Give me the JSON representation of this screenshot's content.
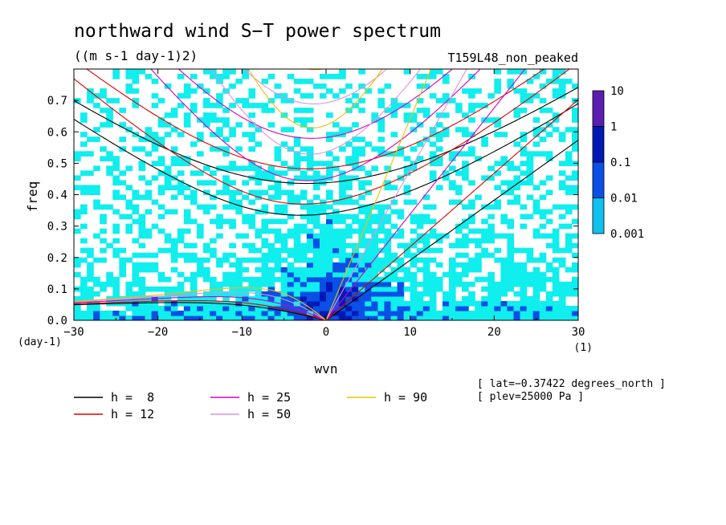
{
  "chart_data": {
    "type": "heatmap",
    "title": "northward wind S−T power spectrum",
    "units": "((m s-1 day-1)2)",
    "run_label": "T159L48_non_peaked",
    "xlabel": "wvn",
    "ylabel": "freq",
    "x_unit_label": "(1)",
    "y_unit_label": "(day-1)",
    "xlim": [
      -30,
      30
    ],
    "ylim": [
      0,
      0.8
    ],
    "x_ticks": [
      "−30",
      "−20",
      "−10",
      "0",
      "10",
      "20",
      "30"
    ],
    "y_ticks": [
      "0.0",
      "0.1",
      "0.2",
      "0.3",
      "0.4",
      "0.5",
      "0.6",
      "0.7"
    ],
    "colorbar": {
      "levels": [
        "10",
        "1",
        "0.1",
        "0.01",
        "0.001"
      ],
      "colors": [
        "#5a1fb0",
        "#0018b4",
        "#0a50e6",
        "#10c0ee"
      ]
    },
    "contour_colors": {
      "level_0.001": "#10eeee",
      "level_0.01": "#0a50e6",
      "level_0.1": "#0018b4",
      "level_1": "#5a1fb0"
    },
    "dispersion_curves": [
      {
        "name": "h =  8",
        "h": 8,
        "color": "#000000"
      },
      {
        "name": "h = 12",
        "h": 12,
        "color": "#e00000"
      },
      {
        "name": "h = 25",
        "h": 25,
        "color": "#d000c0"
      },
      {
        "name": "h = 50",
        "h": 50,
        "color": "#e090e0"
      },
      {
        "name": "h = 90",
        "h": 90,
        "color": "#f0c000"
      }
    ],
    "curve_types": [
      "kelvin",
      "inertia_gravity_n1",
      "inertia_gravity_n2",
      "equatorial_rossby"
    ],
    "annotations": [
      "[ lat=−0.37422 degrees_north ]",
      "[ plev=25000 Pa ]"
    ]
  }
}
